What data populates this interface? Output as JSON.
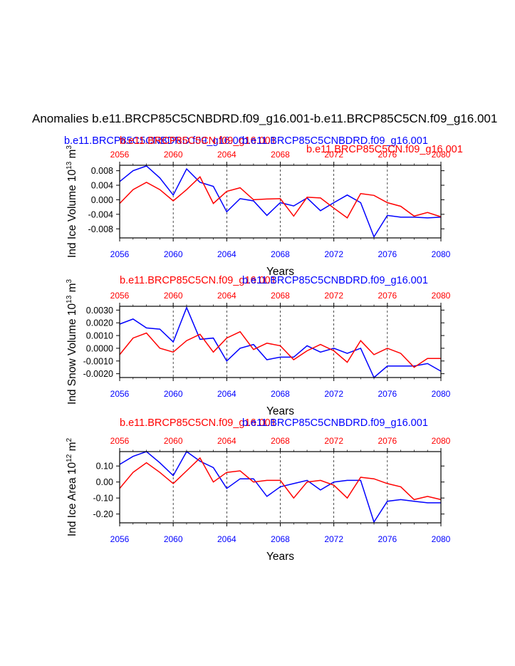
{
  "figure": {
    "title": "Anomalies b.e11.BRCP85C5CNBDRD.f09_g16.001-b.e11.BRCP85C5CN.f09_g16.001",
    "colors": {
      "red": "#ff0000",
      "blue": "#0000ff",
      "black": "#000000"
    }
  },
  "chart_data": [
    {
      "type": "line",
      "ylabel_main": "Ind Ice Volume 10",
      "ylabel_exp": "13",
      "ylabel_unit": " m",
      "ylabel_unit_exp": "3",
      "xlabel": "Years",
      "xlim": [
        2056,
        2080
      ],
      "ylim": [
        -0.0105,
        0.0095
      ],
      "yticks": [
        -0.008,
        -0.004,
        0.0,
        0.004,
        0.008
      ],
      "ytick_labels": [
        "-0.008",
        "-0.004",
        "0.000",
        "0.004",
        "0.008"
      ],
      "xticks": [
        "2056",
        "2060",
        "2064",
        "2068",
        "2072",
        "2076",
        "2080"
      ],
      "header_labels": [
        {
          "text": "b.e11.BRCP85C5CNBDRD.f09_g16.001",
          "color": "blue"
        },
        {
          "text": "b.e11.BRCP85C5CN.f09_g16.001",
          "color": "red"
        },
        {
          "text": "b.e11.BRCP85C5CNBDRD.f09_g16.001",
          "color": "blue"
        },
        {
          "text": "b.e11.BRCP85C5CN.f09_g16.001",
          "color": "red"
        }
      ],
      "x": [
        2056,
        2057,
        2058,
        2059,
        2060,
        2061,
        2062,
        2063,
        2064,
        2065,
        2066,
        2067,
        2068,
        2069,
        2070,
        2071,
        2072,
        2073,
        2074,
        2075,
        2076,
        2077,
        2078,
        2079,
        2080
      ],
      "series": [
        {
          "name": "b.e11.BRCP85C5CNBDRD.f09_g16.001",
          "color": "blue",
          "values": [
            0.005,
            0.008,
            0.0093,
            0.006,
            0.0013,
            0.0085,
            0.0048,
            0.0037,
            -0.0033,
            0.0003,
            -0.0003,
            -0.0043,
            -0.0008,
            -0.0017,
            0.0005,
            -0.003,
            -0.0008,
            0.0013,
            -0.0008,
            -0.0102,
            -0.0043,
            -0.0048,
            -0.0048,
            -0.005,
            -0.0048
          ]
        },
        {
          "name": "b.e11.BRCP85C5CN.f09_g16.001",
          "color": "red",
          "values": [
            -0.001,
            0.0028,
            0.0048,
            0.0028,
            -0.0003,
            0.0028,
            0.0063,
            -0.001,
            0.0023,
            0.0033,
            0.0,
            0.0002,
            0.0003,
            -0.0045,
            0.0007,
            0.0005,
            -0.0023,
            -0.005,
            0.0017,
            0.0012,
            -0.0008,
            -0.0018,
            -0.0045,
            -0.0035,
            -0.0047
          ]
        }
      ]
    },
    {
      "type": "line",
      "ylabel_main": "Ind Snow Volume 10",
      "ylabel_exp": "13",
      "ylabel_unit": " m",
      "ylabel_unit_exp": "3",
      "xlabel": "Years",
      "xlim": [
        2056,
        2080
      ],
      "ylim": [
        -0.0023,
        0.0033
      ],
      "yticks": [
        -0.002,
        -0.001,
        0.0,
        0.001,
        0.002,
        0.003
      ],
      "ytick_labels": [
        "-0.0020",
        "-0.0010",
        "0.0000",
        "0.0010",
        "0.0020",
        "0.0030"
      ],
      "xticks": [
        "2056",
        "2060",
        "2064",
        "2068",
        "2072",
        "2076",
        "2080"
      ],
      "header_labels": [
        {
          "text": "b.e11.BRCP85C5CN.f09_g16.001",
          "color": "red"
        },
        {
          "text": "b.e11.BRCP85C5CNBDRD.f09_g16.001",
          "color": "blue"
        }
      ],
      "x": [
        2056,
        2057,
        2058,
        2059,
        2060,
        2061,
        2062,
        2063,
        2064,
        2065,
        2066,
        2067,
        2068,
        2069,
        2070,
        2071,
        2072,
        2073,
        2074,
        2075,
        2076,
        2077,
        2078,
        2079,
        2080
      ],
      "series": [
        {
          "name": "b.e11.BRCP85C5CNBDRD.f09_g16.001",
          "color": "blue",
          "values": [
            0.0019,
            0.0023,
            0.0016,
            0.0015,
            0.0005,
            0.0032,
            0.0007,
            0.0008,
            -0.001,
            0.0,
            0.0003,
            -0.0009,
            -0.0007,
            -0.0007,
            0.0002,
            -0.0003,
            0.0,
            -0.0004,
            0.0,
            -0.0023,
            -0.0014,
            -0.0014,
            -0.0014,
            -0.0012,
            -0.0018
          ]
        },
        {
          "name": "b.e11.BRCP85C5CN.f09_g16.001",
          "color": "red",
          "values": [
            -0.0005,
            0.0008,
            0.0012,
            0.0,
            -0.0003,
            0.0006,
            0.0011,
            -0.0003,
            0.0008,
            0.0013,
            -0.0001,
            0.0004,
            0.0002,
            -0.0009,
            -0.0002,
            0.0003,
            -0.0002,
            -0.0011,
            0.0006,
            -0.0005,
            0.0,
            -0.0004,
            -0.0015,
            -0.0008,
            -0.0008
          ]
        }
      ]
    },
    {
      "type": "line",
      "ylabel_main": "Ind Ice Area 10",
      "ylabel_exp": "12",
      "ylabel_unit": " m",
      "ylabel_unit_exp": "2",
      "xlabel": "Years",
      "xlim": [
        2056,
        2080
      ],
      "ylim": [
        -0.255,
        0.19
      ],
      "yticks": [
        -0.2,
        -0.1,
        0.0,
        0.1
      ],
      "ytick_labels": [
        "-0.20",
        "-0.10",
        "0.00",
        "0.10"
      ],
      "xticks": [
        "2056",
        "2060",
        "2064",
        "2068",
        "2072",
        "2076",
        "2080"
      ],
      "header_labels": [
        {
          "text": "b.e11.BRCP85C5CN.f09_g16.001",
          "color": "red"
        },
        {
          "text": "b.e11.BRCP85C5CNBDRD.f09_g16.001",
          "color": "blue"
        }
      ],
      "x": [
        2056,
        2057,
        2058,
        2059,
        2060,
        2061,
        2062,
        2063,
        2064,
        2065,
        2066,
        2067,
        2068,
        2069,
        2070,
        2071,
        2072,
        2073,
        2074,
        2075,
        2076,
        2077,
        2078,
        2079,
        2080
      ],
      "series": [
        {
          "name": "b.e11.BRCP85C5CNBDRD.f09_g16.001",
          "color": "blue",
          "values": [
            0.11,
            0.16,
            0.19,
            0.12,
            0.04,
            0.19,
            0.13,
            0.09,
            -0.04,
            0.02,
            0.02,
            -0.09,
            -0.03,
            -0.01,
            0.01,
            -0.05,
            0.0,
            0.01,
            0.01,
            -0.25,
            -0.12,
            -0.11,
            -0.12,
            -0.13,
            -0.13
          ]
        },
        {
          "name": "b.e11.BRCP85C5CN.f09_g16.001",
          "color": "red",
          "values": [
            -0.04,
            0.06,
            0.12,
            0.06,
            -0.01,
            0.07,
            0.15,
            0.0,
            0.06,
            0.07,
            0.0,
            0.01,
            0.01,
            -0.1,
            0.0,
            0.01,
            -0.02,
            -0.1,
            0.03,
            0.02,
            -0.01,
            -0.03,
            -0.11,
            -0.09,
            -0.11
          ]
        }
      ]
    }
  ]
}
